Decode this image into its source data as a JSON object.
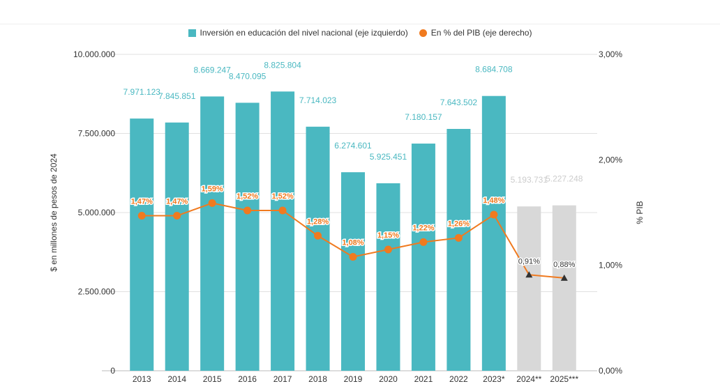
{
  "chart_data": {
    "type": "bar",
    "categories": [
      "2013",
      "2014",
      "2015",
      "2016",
      "2017",
      "2018",
      "2019",
      "2020",
      "2021",
      "2022",
      "2023*",
      "2024**",
      "2025***"
    ],
    "series": [
      {
        "name": "Inversión en educación del nivel nacional (eje izquierdo)",
        "axis": "left",
        "type": "bar",
        "values": [
          7971123,
          7845851,
          8669247,
          8470095,
          8825804,
          7714023,
          6274601,
          5925451,
          7180157,
          7643502,
          8684708,
          5193731,
          5227248
        ],
        "labels": [
          "7.971.123",
          "7.845.851",
          "8.669.247",
          "8.470.095",
          "8.825.804",
          "7.714.023",
          "6.274.601",
          "5.925.451",
          "7.180.157",
          "7.643.502",
          "8.684.708",
          "5.193.731",
          "5.227.248"
        ],
        "projected": [
          false,
          false,
          false,
          false,
          false,
          false,
          false,
          false,
          false,
          false,
          false,
          true,
          true
        ]
      },
      {
        "name": "En % del PIB (eje derecho)",
        "axis": "right",
        "type": "line",
        "values": [
          1.47,
          1.47,
          1.59,
          1.52,
          1.52,
          1.28,
          1.08,
          1.15,
          1.22,
          1.26,
          1.48,
          0.91,
          0.88
        ],
        "labels": [
          "1,47%",
          "1,47%",
          "1,59%",
          "1,52%",
          "1,52%",
          "1,28%",
          "1,08%",
          "1,15%",
          "1,22%",
          "1,26%",
          "1,48%",
          "0,91%",
          "0,88%"
        ],
        "projected": [
          false,
          false,
          false,
          false,
          false,
          false,
          false,
          false,
          false,
          false,
          false,
          true,
          true
        ]
      }
    ],
    "y_left": {
      "label": "$ en millones de pesos de 2024",
      "ylim": [
        0,
        10000000
      ],
      "ticks": [
        0,
        2500000,
        5000000,
        7500000,
        10000000
      ],
      "tick_labels": [
        "0",
        "2.500.000",
        "5.000.000",
        "7.500.000",
        "10.000.000"
      ]
    },
    "y_right": {
      "label": "% PIB",
      "ylim": [
        0,
        3
      ],
      "ticks": [
        0,
        1,
        2,
        3
      ],
      "tick_labels": [
        "0,00%",
        "1,00%",
        "2,00%",
        "3,00%"
      ]
    },
    "grid": true,
    "legend_position": "top-center",
    "colors": {
      "bar": "#4ab8c1",
      "bar_projected": "#d8d8d8",
      "bar_label": "#4ab8c1",
      "bar_label_projected": "#cccccc",
      "line": "#f07a1f",
      "marker_projected": "#333333",
      "grid": "#e0e0e0",
      "axis_text": "#333333"
    }
  }
}
